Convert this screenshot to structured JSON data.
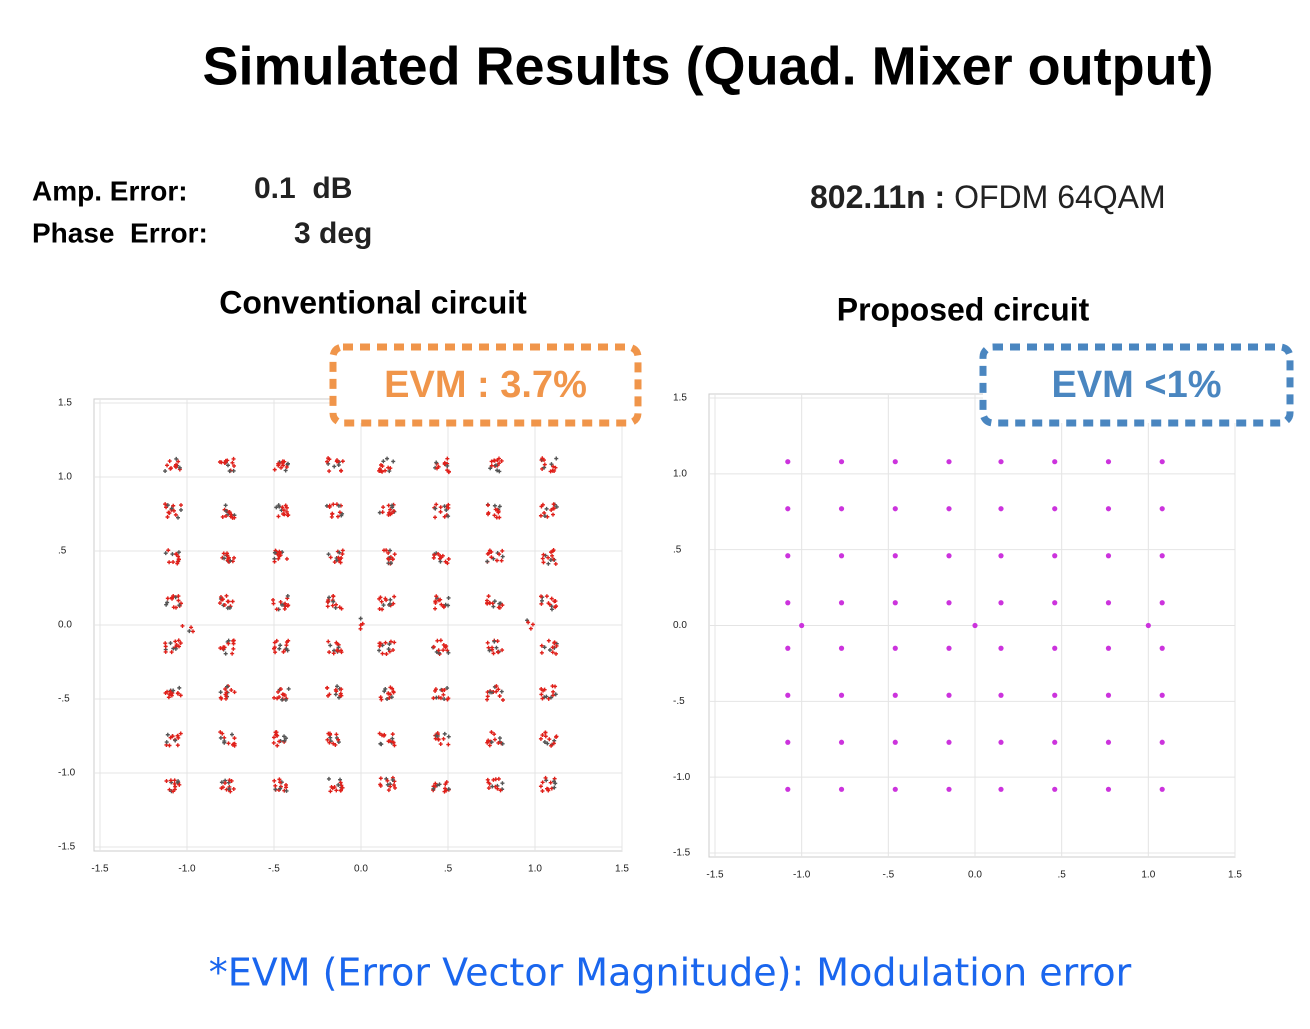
{
  "title": "Simulated Results (Quad. Mixer output)",
  "params": [
    {
      "label": "Amp. Error:",
      "value": "0.1  dB"
    },
    {
      "label": "Phase  Error:",
      "value": "3 deg"
    }
  ],
  "standard": {
    "name": "802.11n :",
    "mode": "OFDM 64QAM"
  },
  "footnote": "*EVM (Error Vector Magnitude): Modulation error",
  "chart_data": [
    {
      "type": "scatter",
      "title": "Conventional circuit",
      "annotation": "EVM : 3.7%",
      "annotation_color": "#f0954a",
      "color": "#e0201a",
      "xlim": [
        -1.5,
        1.5
      ],
      "ylim": [
        -1.5,
        1.5
      ],
      "grid": true,
      "xticks": [
        -1.5,
        {
          "value": -1,
          "label": "-1.0"
        },
        {
          "value": -0.5,
          "label": "-.5"
        },
        {
          "value": 0,
          "label": "0.0"
        },
        {
          "value": 0.5,
          "label": ".5"
        },
        {
          "value": 1,
          "label": "1.0"
        },
        1.5
      ],
      "yticks": [
        -1.5,
        {
          "value": -1,
          "label": "-1.0"
        },
        {
          "value": -0.5,
          "label": "-.5"
        },
        {
          "value": 0,
          "label": "0.0"
        },
        {
          "value": 0.5,
          "label": ".5"
        },
        {
          "value": 1,
          "label": "1.0"
        },
        1.5
      ],
      "x": [
        -1.08,
        -0.77,
        -0.46,
        -0.15,
        0.15,
        0.46,
        0.77,
        1.08,
        -1.08,
        -0.77,
        -0.46,
        -0.15,
        0.15,
        0.46,
        0.77,
        1.08,
        -1.08,
        -0.77,
        -0.46,
        -0.15,
        0.15,
        0.46,
        0.77,
        1.08,
        -1.08,
        -0.77,
        -0.46,
        -0.15,
        0.15,
        0.46,
        0.77,
        1.08,
        -1.08,
        -0.77,
        -0.46,
        -0.15,
        0.15,
        0.46,
        0.77,
        1.08,
        -1.08,
        -0.77,
        -0.46,
        -0.15,
        0.15,
        0.46,
        0.77,
        1.08,
        -1.08,
        -0.77,
        -0.46,
        -0.15,
        0.15,
        0.46,
        0.77,
        1.08,
        -1.08,
        -0.77,
        -0.46,
        -0.15,
        0.15,
        0.46,
        0.77,
        1.08,
        -1,
        0,
        1
      ],
      "y": [
        1.08,
        1.08,
        1.08,
        1.08,
        1.08,
        1.08,
        1.08,
        1.08,
        0.77,
        0.77,
        0.77,
        0.77,
        0.77,
        0.77,
        0.77,
        0.77,
        0.46,
        0.46,
        0.46,
        0.46,
        0.46,
        0.46,
        0.46,
        0.46,
        0.15,
        0.15,
        0.15,
        0.15,
        0.15,
        0.15,
        0.15,
        0.15,
        -0.15,
        -0.15,
        -0.15,
        -0.15,
        -0.15,
        -0.15,
        -0.15,
        -0.15,
        -0.46,
        -0.46,
        -0.46,
        -0.46,
        -0.46,
        -0.46,
        -0.46,
        -0.46,
        -0.77,
        -0.77,
        -0.77,
        -0.77,
        -0.77,
        -0.77,
        -0.77,
        -0.77,
        -1.08,
        -1.08,
        -1.08,
        -1.08,
        -1.08,
        -1.08,
        -1.08,
        -1.08,
        0,
        0,
        0
      ]
    },
    {
      "type": "scatter",
      "title": "Proposed circuit",
      "annotation": "EVM <1%",
      "annotation_color": "#4a86c0",
      "color": "#cc33dd",
      "xlim": [
        -1.5,
        1.5
      ],
      "ylim": [
        -1.5,
        1.5
      ],
      "grid": true,
      "xticks": [
        -1.5,
        {
          "value": -1,
          "label": "-1.0"
        },
        {
          "value": -0.5,
          "label": "-.5"
        },
        {
          "value": 0,
          "label": "0.0"
        },
        {
          "value": 0.5,
          "label": ".5"
        },
        {
          "value": 1,
          "label": "1.0"
        },
        1.5
      ],
      "yticks": [
        -1.5,
        {
          "value": -1,
          "label": "-1.0"
        },
        {
          "value": -0.5,
          "label": "-.5"
        },
        {
          "value": 0,
          "label": "0.0"
        },
        {
          "value": 0.5,
          "label": ".5"
        },
        {
          "value": 1,
          "label": "1.0"
        },
        1.5
      ],
      "x": [
        -1.08,
        -0.77,
        -0.46,
        -0.15,
        0.15,
        0.46,
        0.77,
        1.08,
        -1.08,
        -0.77,
        -0.46,
        -0.15,
        0.15,
        0.46,
        0.77,
        1.08,
        -1.08,
        -0.77,
        -0.46,
        -0.15,
        0.15,
        0.46,
        0.77,
        1.08,
        -1.08,
        -0.77,
        -0.46,
        -0.15,
        0.15,
        0.46,
        0.77,
        1.08,
        -1.08,
        -0.77,
        -0.46,
        -0.15,
        0.15,
        0.46,
        0.77,
        1.08,
        -1.08,
        -0.77,
        -0.46,
        -0.15,
        0.15,
        0.46,
        0.77,
        1.08,
        -1.08,
        -0.77,
        -0.46,
        -0.15,
        0.15,
        0.46,
        0.77,
        1.08,
        -1.08,
        -0.77,
        -0.46,
        -0.15,
        0.15,
        0.46,
        0.77,
        1.08,
        -1,
        0,
        1
      ],
      "y": [
        1.08,
        1.08,
        1.08,
        1.08,
        1.08,
        1.08,
        1.08,
        1.08,
        0.77,
        0.77,
        0.77,
        0.77,
        0.77,
        0.77,
        0.77,
        0.77,
        0.46,
        0.46,
        0.46,
        0.46,
        0.46,
        0.46,
        0.46,
        0.46,
        0.15,
        0.15,
        0.15,
        0.15,
        0.15,
        0.15,
        0.15,
        0.15,
        -0.15,
        -0.15,
        -0.15,
        -0.15,
        -0.15,
        -0.15,
        -0.15,
        -0.15,
        -0.46,
        -0.46,
        -0.46,
        -0.46,
        -0.46,
        -0.46,
        -0.46,
        -0.46,
        -0.77,
        -0.77,
        -0.77,
        -0.77,
        -0.77,
        -0.77,
        -0.77,
        -0.77,
        -1.08,
        -1.08,
        -1.08,
        -1.08,
        -1.08,
        -1.08,
        -1.08,
        -1.08,
        0,
        0,
        0
      ]
    }
  ]
}
